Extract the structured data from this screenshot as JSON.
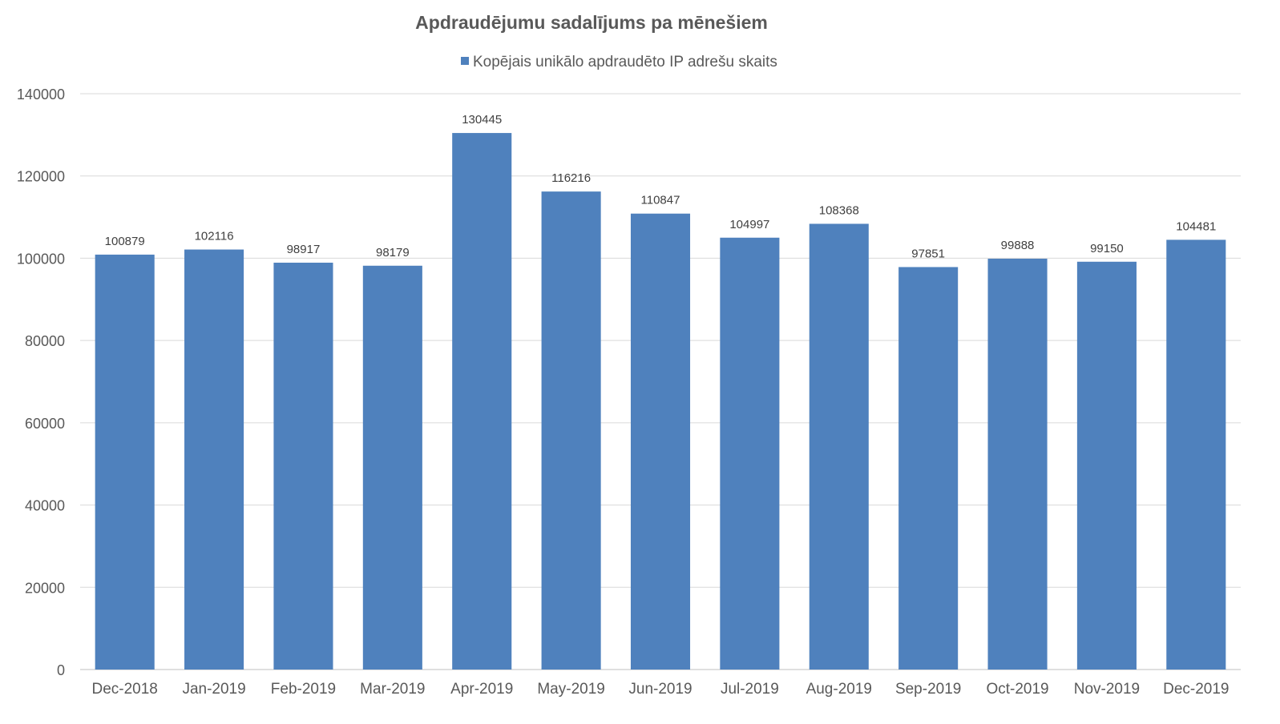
{
  "chart_data": {
    "type": "bar",
    "title": "Apdraudējumu sadalījums pa mēnešiem",
    "xlabel": "",
    "ylabel": "",
    "ylim": [
      0,
      140000
    ],
    "yticks": [
      "0",
      "20000",
      "40000",
      "60000",
      "80000",
      "100000",
      "120000",
      "140000"
    ],
    "grid": true,
    "legend_position": "top",
    "categories": [
      "Dec-2018",
      "Jan-2019",
      "Feb-2019",
      "Mar-2019",
      "Apr-2019",
      "May-2019",
      "Jun-2019",
      "Jul-2019",
      "Aug-2019",
      "Sep-2019",
      "Oct-2019",
      "Nov-2019",
      "Dec-2019"
    ],
    "series": [
      {
        "name": "Kopējais unikālo apdraudēto IP adrešu skaits",
        "color": "#4f81bd",
        "values": [
          100879,
          102116,
          98917,
          98179,
          130445,
          116216,
          110847,
          104997,
          108368,
          97851,
          99888,
          99150,
          104481
        ]
      }
    ]
  }
}
